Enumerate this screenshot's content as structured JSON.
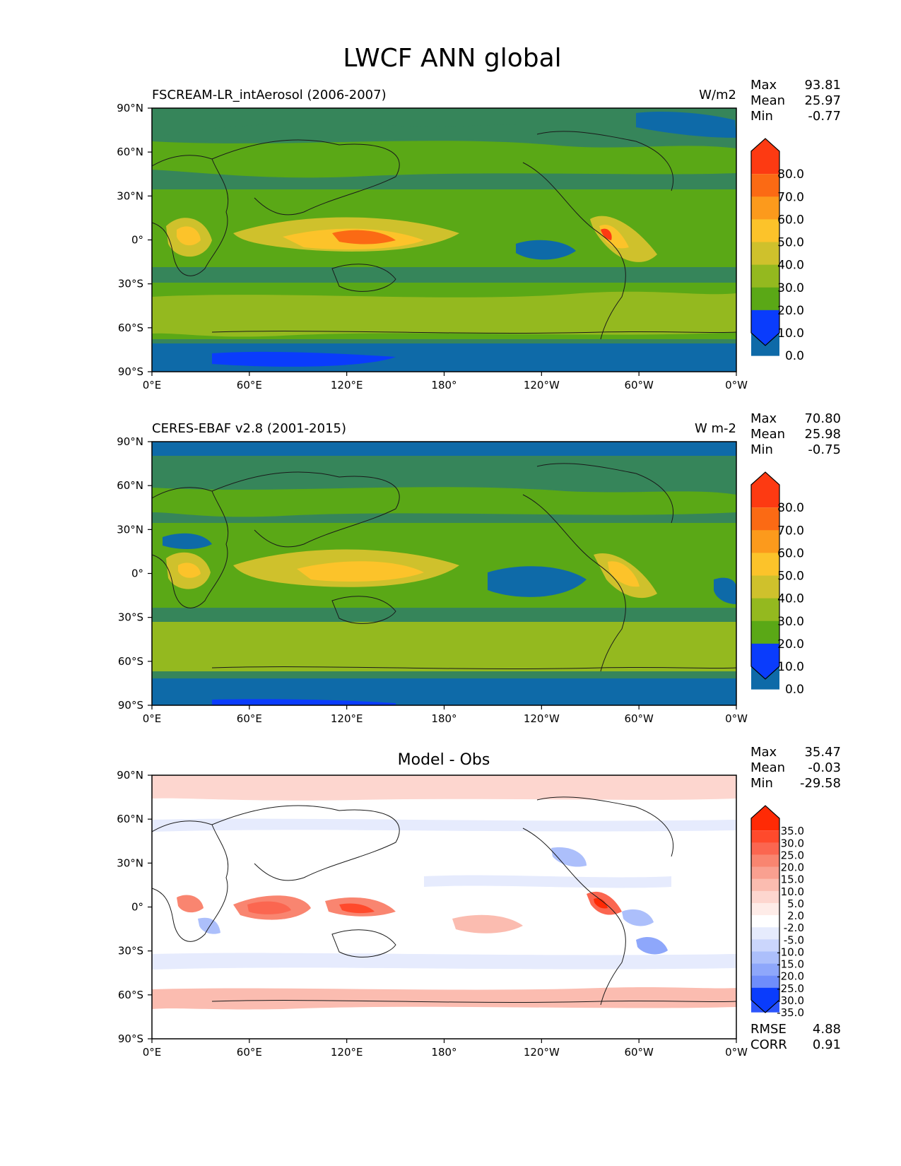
{
  "figure": {
    "title": "LWCF ANN global"
  },
  "axes": {
    "lon_ticks": [
      "0°E",
      "60°E",
      "120°E",
      "180°",
      "120°W",
      "60°W",
      "0°W"
    ],
    "lat_ticks": [
      "90°N",
      "60°N",
      "30°N",
      "0°",
      "30°S",
      "60°S",
      "90°S"
    ]
  },
  "panels": [
    {
      "id": "model",
      "title_left": "FSCREAM-LR_intAerosol (2006-2007)",
      "title_center": "",
      "units": "W/m2",
      "stats": [
        {
          "label": "Max",
          "value": "93.81"
        },
        {
          "label": "Mean",
          "value": "25.97"
        },
        {
          "label": "Min",
          "value": "-0.77"
        }
      ],
      "colorbar": {
        "labels": [
          "80.0",
          "70.0",
          "60.0",
          "50.0",
          "40.0",
          "30.0",
          "20.0",
          "10.0",
          "0.0"
        ],
        "colors": [
          "#fd3a12",
          "#fb6a14",
          "#fc9a1c",
          "#fcc32a",
          "#cfc12c",
          "#94b91f",
          "#5aa816",
          "#36855a",
          "#0e6aa8",
          "#0a3cfc"
        ]
      }
    },
    {
      "id": "obs",
      "title_left": "CERES-EBAF v2.8 (2001-2015)",
      "title_center": "",
      "units": "W m-2",
      "stats": [
        {
          "label": "Max",
          "value": "70.80"
        },
        {
          "label": "Mean",
          "value": "25.98"
        },
        {
          "label": "Min",
          "value": "-0.75"
        }
      ],
      "colorbar": {
        "labels": [
          "80.0",
          "70.0",
          "60.0",
          "50.0",
          "40.0",
          "30.0",
          "20.0",
          "10.0",
          "0.0"
        ],
        "colors": [
          "#fd3a12",
          "#fb6a14",
          "#fc9a1c",
          "#fcc32a",
          "#cfc12c",
          "#94b91f",
          "#5aa816",
          "#36855a",
          "#0e6aa8",
          "#0a3cfc"
        ]
      }
    },
    {
      "id": "diff",
      "title_left": "",
      "title_center": "Model - Obs",
      "units": "",
      "stats": [
        {
          "label": "Max",
          "value": "35.47"
        },
        {
          "label": "Mean",
          "value": "-0.03"
        },
        {
          "label": "Min",
          "value": "-29.58"
        }
      ],
      "colorbar": {
        "labels": [
          "35.0",
          "30.0",
          "25.0",
          "20.0",
          "15.0",
          "10.0",
          "5.0",
          "2.0",
          "-2.0",
          "-5.0",
          "-10.0",
          "-15.0",
          "-20.0",
          "-25.0",
          "-30.0",
          "-35.0"
        ],
        "colors": [
          "#ff2a05",
          "#ff4a2c",
          "#fb6650",
          "#f98570",
          "#f9a090",
          "#fbbcb0",
          "#fdd6cf",
          "#feece8",
          "#ffffff",
          "#e6ebfd",
          "#cbd6fc",
          "#acbffb",
          "#8ea7fb",
          "#6f8dfb",
          "#4f72fb",
          "#2c55fc",
          "#0a3cfc"
        ]
      },
      "error_stats": [
        {
          "label": "RMSE",
          "value": "4.88"
        },
        {
          "label": "CORR",
          "value": "0.91"
        }
      ]
    }
  ]
}
